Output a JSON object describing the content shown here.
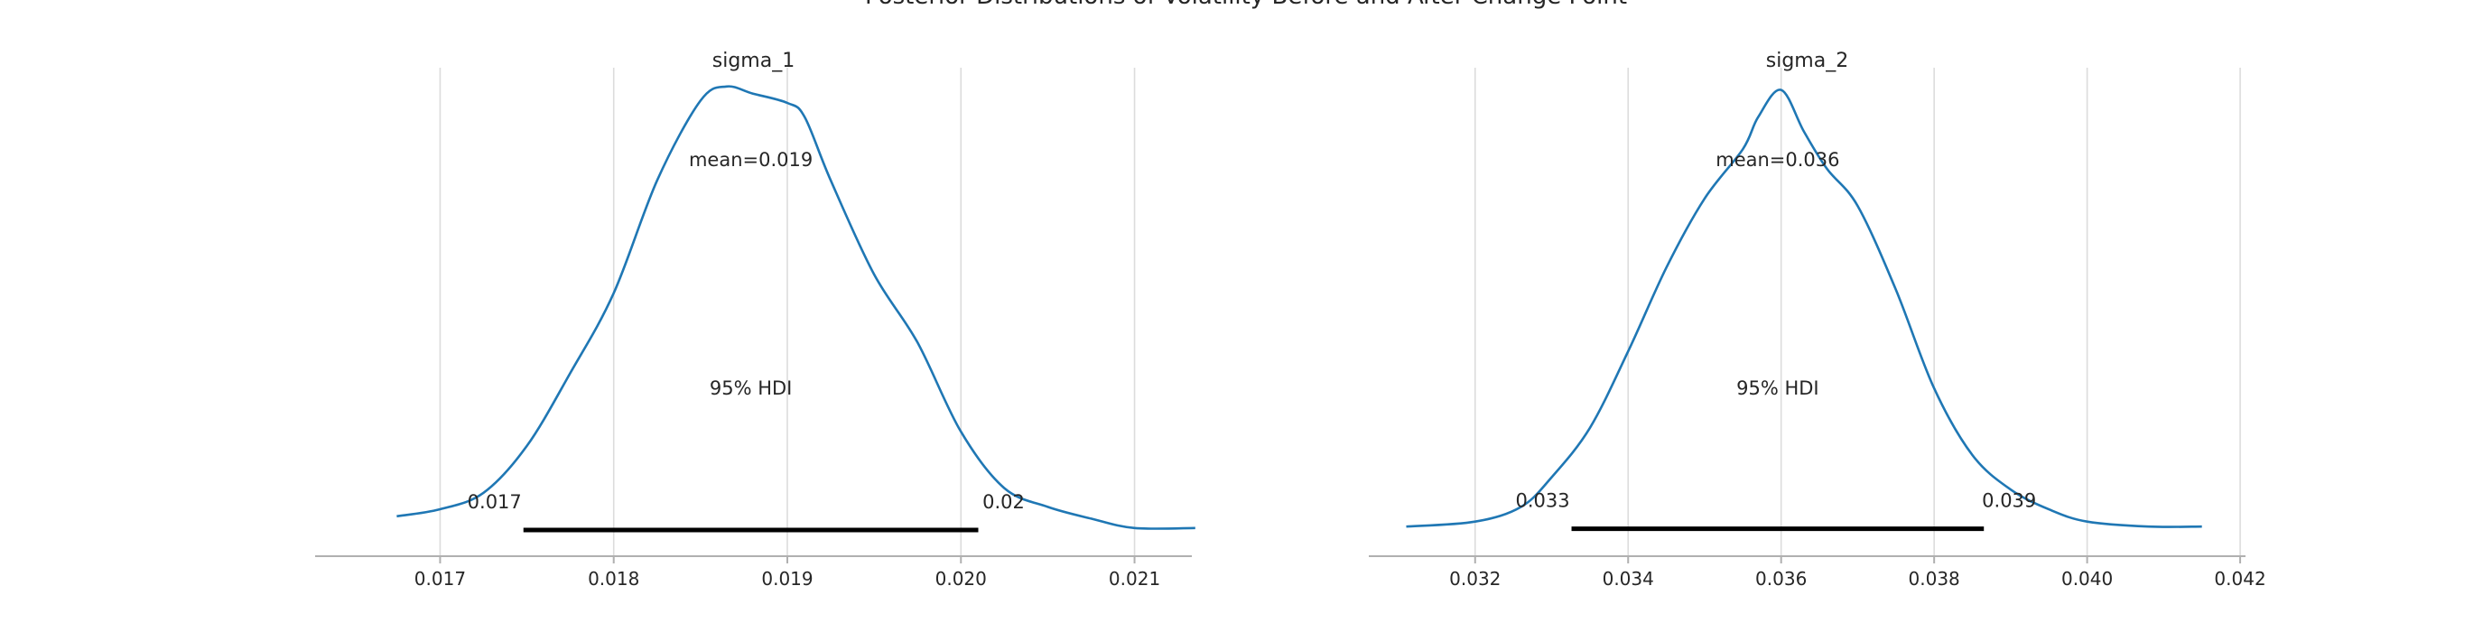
{
  "figure": {
    "title": "Posterior Distributions of Volatility Before and After Change Point"
  },
  "chart_data": [
    {
      "type": "line",
      "title": "sigma_1",
      "series": [
        {
          "color": "#1f77b4",
          "x": [
            0.01675,
            0.017,
            0.01725,
            0.0175,
            0.01775,
            0.018,
            0.01825,
            0.0185,
            0.01865,
            0.0188,
            0.019,
            0.0191,
            0.01925,
            0.0195,
            0.01975,
            0.02,
            0.02025,
            0.0205,
            0.02075,
            0.021,
            0.02135
          ],
          "y": [
            0.07,
            0.1,
            0.17,
            0.37,
            0.68,
            1.02,
            1.5,
            1.84,
            1.9,
            1.87,
            1.83,
            1.77,
            1.5,
            1.1,
            0.81,
            0.43,
            0.19,
            0.11,
            0.06,
            0.02,
            0.02
          ]
        }
      ],
      "mean_label": "mean=0.019",
      "hdi_label": "95% HDI",
      "hdi": [
        0.01748,
        0.0201
      ],
      "hdi_low_label": "0.017",
      "hdi_high_label": "0.02",
      "ticks": [
        "0.017",
        "0.018",
        "0.019",
        "0.020",
        "0.021"
      ],
      "tick_values": [
        0.017,
        0.018,
        0.019,
        0.02,
        0.021
      ],
      "xlim": [
        0.01628,
        0.02133
      ],
      "ylim": [
        -0.1,
        1.98
      ],
      "grid": "vertical",
      "color": "#1f77b4"
    },
    {
      "type": "line",
      "title": "sigma_2",
      "series": [
        {
          "color": "#1f77b4",
          "x": [
            0.0311,
            0.032,
            0.0326,
            0.033,
            0.0335,
            0.034,
            0.0345,
            0.035,
            0.0355,
            0.0357,
            0.036,
            0.0363,
            0.0366,
            0.037,
            0.0375,
            0.038,
            0.0385,
            0.039,
            0.0395,
            0.04,
            0.0408,
            0.0415
          ],
          "y": [
            0.02,
            0.04,
            0.1,
            0.22,
            0.42,
            0.73,
            1.07,
            1.35,
            1.55,
            1.68,
            1.79,
            1.62,
            1.47,
            1.32,
            0.98,
            0.58,
            0.31,
            0.17,
            0.09,
            0.04,
            0.02,
            0.02
          ]
        }
      ],
      "mean_label": "mean=0.036",
      "hdi_label": "95% HDI",
      "hdi": [
        0.03326,
        0.03865
      ],
      "hdi_low_label": "0.033",
      "hdi_high_label": "0.039",
      "ticks": [
        "0.032",
        "0.034",
        "0.036",
        "0.038",
        "0.040",
        "0.042"
      ],
      "tick_values": [
        0.032,
        0.034,
        0.036,
        0.038,
        0.04,
        0.042
      ],
      "xlim": [
        0.03061,
        0.04207
      ],
      "ylim": [
        -0.1,
        1.88
      ],
      "grid": "vertical",
      "color": "#1f77b4"
    }
  ]
}
